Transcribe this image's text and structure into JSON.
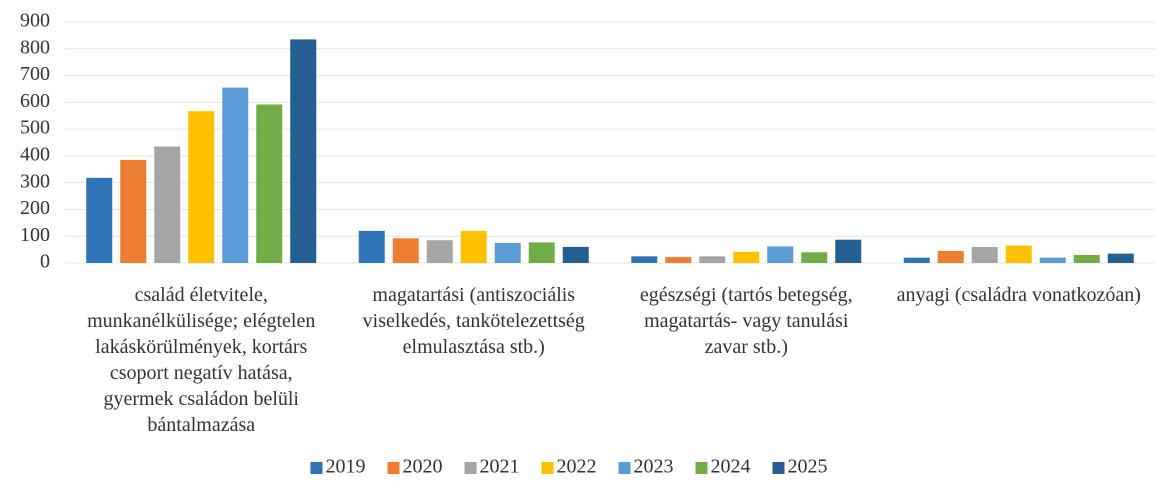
{
  "chart_data": {
    "type": "bar",
    "categories": [
      "család életvitele, munkanélkülisége; elégtelen lakáskörülmények, kortárs csoport negatív hatása, gyermek családon belüli bántalmazása",
      "magatartási (antiszociális viselkedés, tankötelezettség elmulasztása stb.)",
      "egészségi (tartós betegség, magatartás- vagy tanulási zavar stb.)",
      "anyagi (családra vonatkozóan)"
    ],
    "series": [
      {
        "name": "2019",
        "color": "#2e75b6",
        "values": [
          318,
          120,
          25,
          20
        ]
      },
      {
        "name": "2020",
        "color": "#ed7d31",
        "values": [
          385,
          92,
          22,
          45
        ]
      },
      {
        "name": "2021",
        "color": "#a5a5a5",
        "values": [
          435,
          85,
          25,
          60
        ]
      },
      {
        "name": "2022",
        "color": "#ffc000",
        "values": [
          567,
          120,
          42,
          65
        ]
      },
      {
        "name": "2023",
        "color": "#5b9bd5",
        "values": [
          655,
          75,
          62,
          20
        ]
      },
      {
        "name": "2024",
        "color": "#70ad47",
        "values": [
          592,
          77,
          40,
          30
        ]
      },
      {
        "name": "2025",
        "color": "#255e91",
        "values": [
          835,
          60,
          87,
          35
        ]
      }
    ],
    "ylim": [
      0,
      900
    ],
    "yticks": [
      0,
      100,
      200,
      300,
      400,
      500,
      600,
      700,
      800,
      900
    ],
    "grid": true,
    "legend": "bottom"
  }
}
